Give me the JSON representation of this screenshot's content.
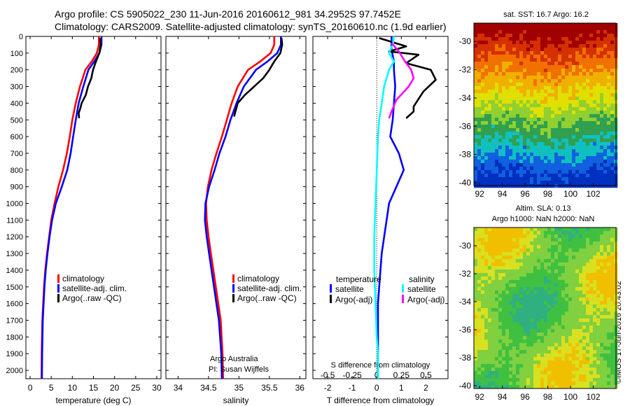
{
  "header": {
    "line1": "Argo profile: CS 5905022_230 11-Jun-2016 20160612_981 34.2952S 97.7452E",
    "line2": "Climatology: CARS2009. Satellite-adjusted climatology: synTS_20160610.nc (1.9d earlier)"
  },
  "footer": {
    "credit": "©IMOS 17-Jun-2016 20:43:02",
    "org": "Argo Australia",
    "pi": "PI: Susan Wijffels"
  },
  "colors": {
    "climatology": "#ff0000",
    "satellite": "#0000ff",
    "argo_t": "#000000",
    "sal_sat": "#00ffff",
    "sal_argo": "#ff00ff"
  },
  "chart_data": [
    {
      "type": "line",
      "xlabel": "temperature (deg C)",
      "ylabel": "",
      "xlim": [
        -1,
        31
      ],
      "ylim": [
        2050,
        0
      ],
      "xticks": [
        0,
        5,
        10,
        15,
        20,
        25,
        30
      ],
      "yticks": [
        0,
        100,
        200,
        300,
        400,
        500,
        600,
        700,
        800,
        900,
        1000,
        1100,
        1200,
        1300,
        1400,
        1500,
        1600,
        1700,
        1800,
        1900,
        2000
      ],
      "legend": [
        "climatology",
        "satellite-adj. clim.",
        "Argo(..raw -QC)"
      ],
      "legend_position": "bottom-right",
      "series": [
        {
          "name": "climatology",
          "color": "red",
          "x": [
            16.3,
            16.3,
            15.8,
            14.6,
            13.1,
            11.8,
            10.8,
            10,
            9.4,
            8.7,
            7.8,
            6.7,
            5.8,
            5,
            4.5,
            4,
            3.6,
            3.3,
            3.1,
            2.9,
            2.75,
            2.7
          ],
          "y": [
            0,
            50,
            100,
            150,
            200,
            300,
            400,
            500,
            600,
            700,
            800,
            900,
            1000,
            1100,
            1200,
            1300,
            1400,
            1500,
            1600,
            1700,
            1900,
            2050
          ]
        },
        {
          "name": "satellite-adj. clim.",
          "color": "blue",
          "x": [
            16.9,
            16.9,
            16.4,
            15.2,
            13.8,
            12.6,
            11.5,
            10.8,
            10.2,
            9.6,
            8.8,
            7.5,
            6.1,
            5.2,
            4.6,
            4.1,
            3.7,
            3.4,
            3.2,
            3,
            2.85,
            2.8
          ],
          "y": [
            0,
            50,
            100,
            150,
            200,
            300,
            400,
            500,
            600,
            700,
            800,
            900,
            1000,
            1100,
            1200,
            1300,
            1400,
            1500,
            1600,
            1700,
            1900,
            2050
          ]
        },
        {
          "name": "Argo(..raw -QC)",
          "color": "black",
          "x": [
            16.6,
            16.7,
            16.4,
            15.6,
            14.9,
            14.5,
            13.7,
            13.2,
            12.2,
            11.9,
            11.5,
            11.6
          ],
          "y": [
            10,
            50,
            100,
            150,
            200,
            250,
            300,
            350,
            400,
            430,
            460,
            490
          ]
        }
      ]
    },
    {
      "type": "line",
      "xlabel": "salinity",
      "xlim": [
        33.8,
        36.1
      ],
      "ylim": [
        2050,
        0
      ],
      "xticks": [
        34,
        34.5,
        35,
        35.5,
        36
      ],
      "legend": [
        "climatology",
        "satellite-adj. clim.",
        "Argo(..raw -QC)"
      ],
      "legend_position": "bottom-right",
      "series": [
        {
          "name": "climatology",
          "color": "red",
          "x": [
            35.58,
            35.58,
            35.52,
            35.35,
            35.15,
            34.98,
            34.88,
            34.8,
            34.72,
            34.63,
            34.55,
            34.49,
            34.46,
            34.47,
            34.5,
            34.54,
            34.58,
            34.62,
            34.66,
            34.7,
            34.73,
            34.74
          ],
          "y": [
            0,
            50,
            100,
            150,
            200,
            300,
            400,
            500,
            600,
            700,
            800,
            900,
            1000,
            1100,
            1200,
            1300,
            1400,
            1500,
            1600,
            1700,
            1900,
            2050
          ]
        },
        {
          "name": "satellite-adj. clim.",
          "color": "blue",
          "x": [
            35.69,
            35.69,
            35.63,
            35.47,
            35.28,
            35.08,
            34.96,
            34.86,
            34.78,
            34.68,
            34.6,
            34.51,
            34.45,
            34.44,
            34.47,
            34.51,
            34.55,
            34.59,
            34.63,
            34.67,
            34.71,
            34.72
          ],
          "y": [
            0,
            50,
            100,
            150,
            200,
            300,
            400,
            500,
            600,
            700,
            800,
            900,
            1000,
            1100,
            1200,
            1300,
            1400,
            1500,
            1600,
            1700,
            1900,
            2050
          ]
        },
        {
          "name": "Argo(..raw -QC)",
          "color": "black",
          "x": [
            35.7,
            35.71,
            35.68,
            35.58,
            35.5,
            35.4,
            35.25,
            35.1,
            34.98,
            34.92
          ],
          "y": [
            10,
            50,
            100,
            150,
            200,
            250,
            300,
            350,
            400,
            480
          ]
        }
      ]
    },
    {
      "type": "line",
      "xlabel": "T difference from climatology",
      "xlabel2": "S difference from climatology",
      "xlim": [
        -2.6,
        2.9
      ],
      "x2lim": [
        -0.65,
        0.725
      ],
      "ylim": [
        2050,
        0
      ],
      "xticks": [
        -2,
        -1,
        0,
        1,
        2
      ],
      "x2ticks": [
        -0.5,
        -0.25,
        0,
        0.25,
        0.5
      ],
      "legend_left_title": "temperature",
      "legend_right_title": "salinity",
      "legend_left": [
        "satellite",
        "Argo(-adj)"
      ],
      "legend_right": [
        "satellite",
        "Argo(-adj)"
      ],
      "series": [
        {
          "name": "temperature satellite",
          "color": "blue",
          "x": [
            0.6,
            0.6,
            0.6,
            0.7,
            0.7,
            0.75,
            0.7,
            0.65,
            0.55,
            0.9,
            1.1,
            0.8,
            0.5,
            0.4,
            0.3,
            0.2,
            0.15,
            0.1,
            0.05,
            0.05,
            0.05
          ],
          "y": [
            0,
            40,
            80,
            150,
            200,
            300,
            400,
            500,
            600,
            700,
            800,
            900,
            1000,
            1100,
            1200,
            1300,
            1400,
            1500,
            1600,
            1800,
            2050
          ]
        },
        {
          "name": "temperature Argo(-adj)",
          "color": "black",
          "x": [
            0.1,
            1.2,
            0.5,
            1.7,
            1.2,
            2.2,
            2.4,
            1.9,
            1.5,
            1.5,
            1.2
          ],
          "y": [
            10,
            60,
            90,
            110,
            160,
            200,
            260,
            330,
            420,
            450,
            490
          ]
        },
        {
          "name": "salinity satellite",
          "color": "cyan",
          "x": [
            0.7,
            0.65,
            0.5,
            0.7,
            0.5,
            0.3,
            0.2,
            0.1,
            0.05,
            0,
            -0.05,
            -0.1,
            -0.1,
            -0.05,
            0,
            0.05,
            0.05
          ],
          "y": [
            0,
            50,
            100,
            150,
            200,
            300,
            400,
            500,
            600,
            800,
            1000,
            1200,
            1400,
            1600,
            1800,
            1900,
            2050
          ]
        },
        {
          "name": "salinity Argo(-adj)",
          "color": "magenta",
          "x": [
            0.6,
            0.9,
            1.15,
            1.4,
            1.5,
            1.3,
            0.8,
            0.6,
            0.5
          ],
          "y": [
            40,
            90,
            150,
            200,
            250,
            300,
            380,
            450,
            490
          ]
        }
      ]
    },
    {
      "type": "heatmap",
      "title": "sat. SST: 16.7 Argo: 16.2",
      "xticks": [
        92,
        94,
        96,
        98,
        100,
        102
      ],
      "yticks": [
        -30,
        -32,
        -34,
        -36,
        -38,
        -40
      ],
      "xlim": [
        91.5,
        104
      ],
      "ylim": [
        -40.2,
        -28.7
      ]
    },
    {
      "type": "heatmap",
      "title": "Altim. SLA: 0.13",
      "subtitle": "Argo h1000: NaN h2000: NaN",
      "xticks": [
        92,
        94,
        96,
        98,
        100,
        102
      ],
      "yticks": [
        -30,
        -32,
        -34,
        -36,
        -38,
        -40
      ],
      "xlim": [
        91.5,
        104
      ],
      "ylim": [
        -40.2,
        -28.7
      ]
    }
  ]
}
